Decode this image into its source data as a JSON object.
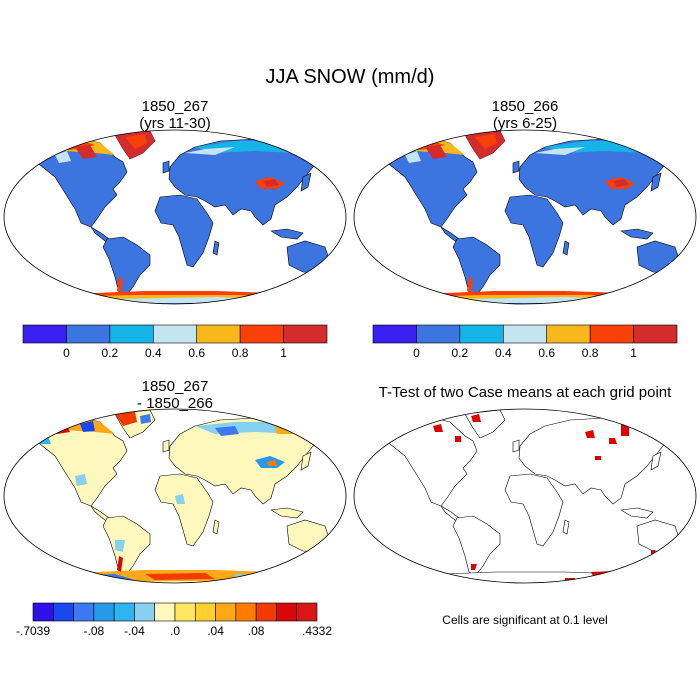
{
  "title": "JJA SNOW (mm/d)",
  "panels": [
    {
      "id": "p1",
      "title_line1": "1850_267",
      "title_line2": "(yrs 11-30)",
      "kind": "field"
    },
    {
      "id": "p2",
      "title_line1": "1850_266",
      "title_line2": "(yrs 6-25)",
      "kind": "field"
    },
    {
      "id": "p3",
      "title_line1": "1850_267",
      "title_line2": "- 1850_266",
      "kind": "diff"
    },
    {
      "id": "p4",
      "title_line1": "T-Test of two Case means at each grid point",
      "title_line2": "",
      "kind": "ttest"
    }
  ],
  "colorbar_top": {
    "colors": [
      "#3b1ef0",
      "#3c74e0",
      "#14b4e8",
      "#c4e4f0",
      "#f8b81c",
      "#f84008",
      "#d42c2c"
    ],
    "labels": [
      "0",
      "0.2",
      "0.4",
      "0.6",
      "0.8",
      "1"
    ]
  },
  "colorbar_diff": {
    "colors": [
      "#3010e8",
      "#1848f0",
      "#3c78f0",
      "#2898e8",
      "#30b4f0",
      "#88d0f0",
      "#fff8bc",
      "#ffe860",
      "#ffd030",
      "#ffa818",
      "#ff7c00",
      "#f03c00",
      "#d80808",
      "#d81818"
    ],
    "labels": [
      "-.7039",
      "-.08",
      "-.04",
      ".0",
      ".04",
      ".08",
      ".4332"
    ]
  },
  "significance_note": "Cells are significant at 0.1 level"
}
